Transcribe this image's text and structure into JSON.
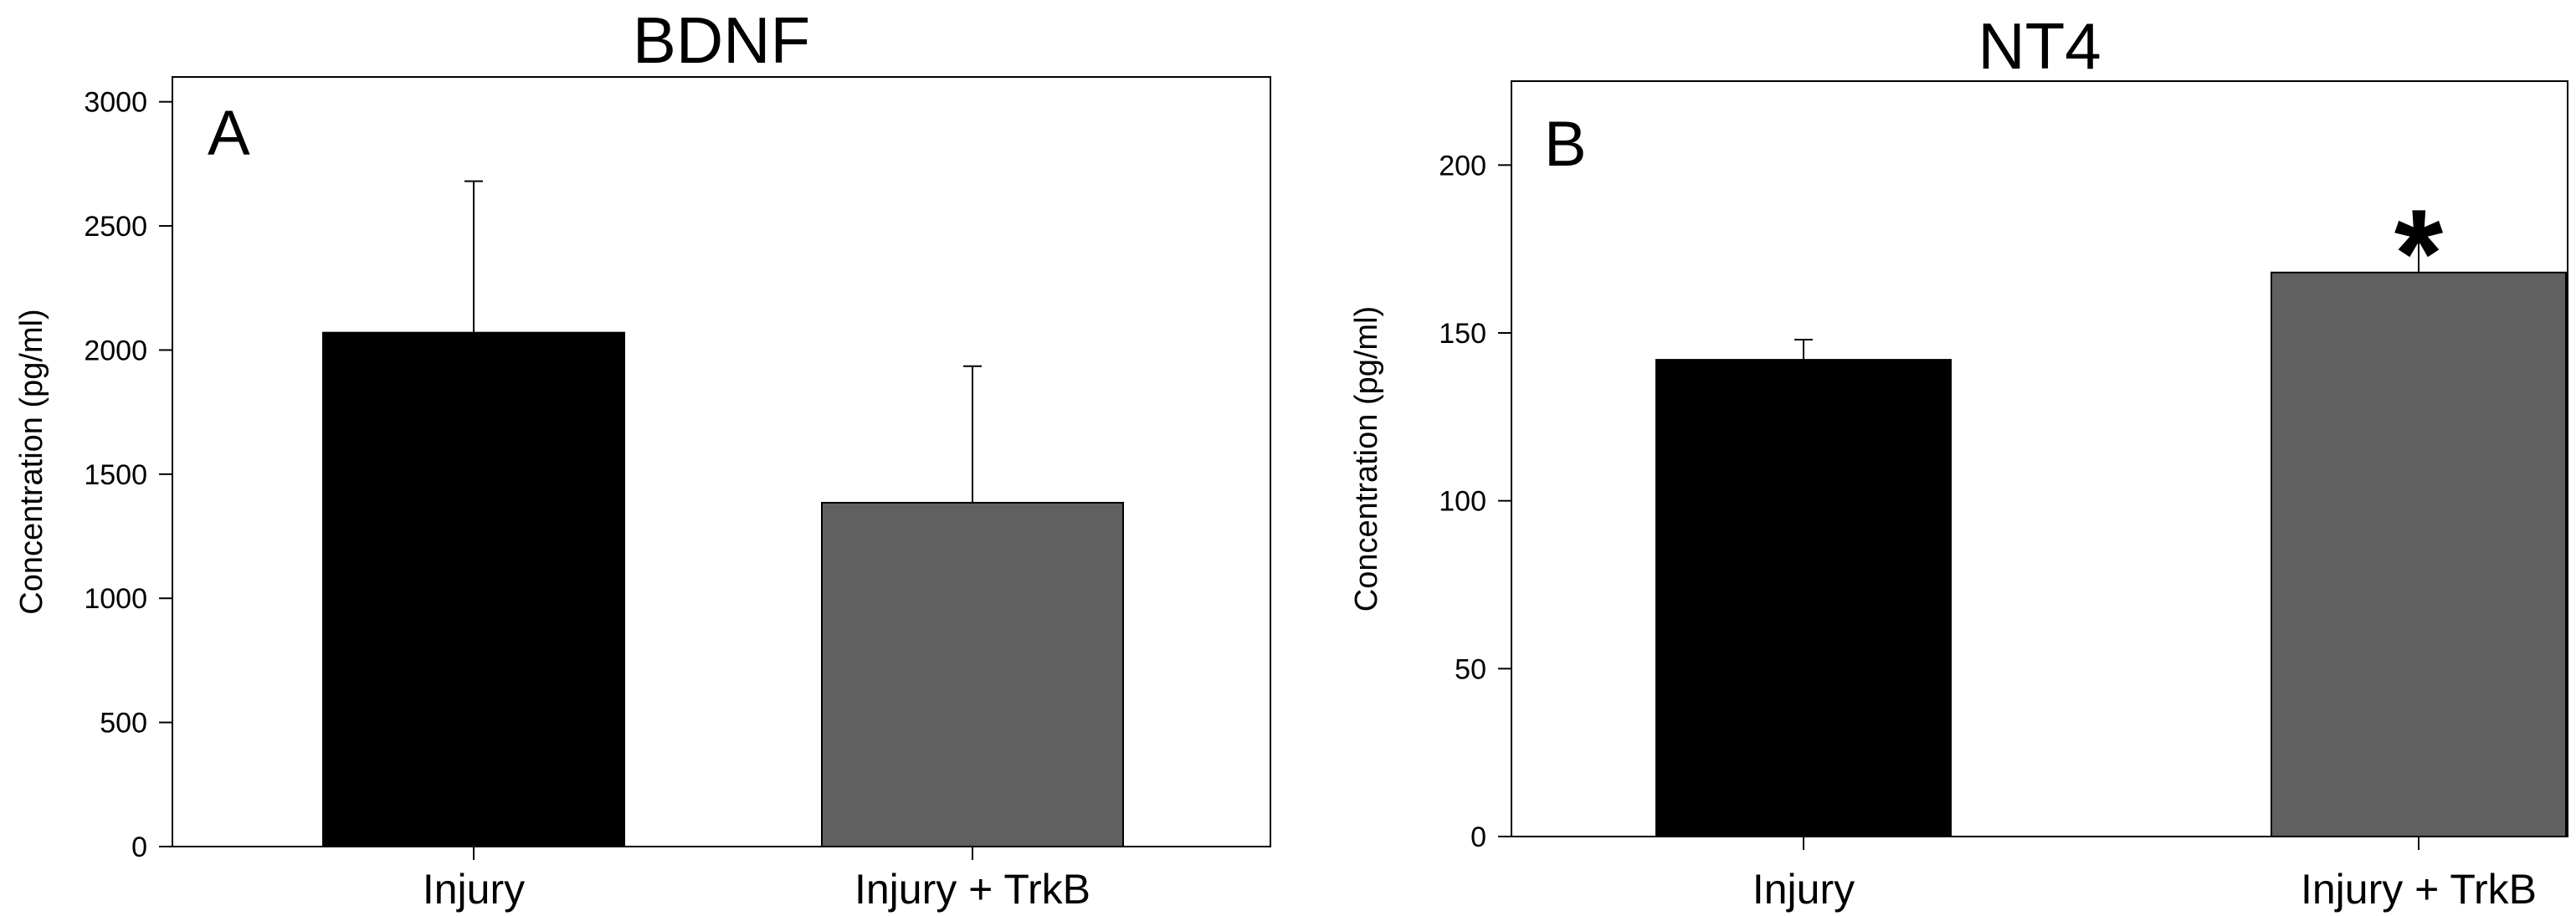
{
  "chart_data": [
    {
      "type": "bar",
      "title": "BDNF",
      "panel_label": "A",
      "categories": [
        "Injury",
        "Injury + TrkB"
      ],
      "values": [
        2070,
        1385
      ],
      "error_upper": [
        2680,
        1935
      ],
      "bar_colors": [
        "#000000",
        "#606060"
      ],
      "ylabel": "Concentration (pg/ml)",
      "xlabel": "",
      "ylim": [
        0,
        3100
      ],
      "yticks": [
        0,
        500,
        1000,
        1500,
        2000,
        2500,
        3000
      ],
      "annotations": [],
      "grid": false
    },
    {
      "type": "bar",
      "title": "NT4",
      "panel_label": "B",
      "categories": [
        "Injury",
        "Injury + TrkB"
      ],
      "values": [
        142,
        168
      ],
      "error_upper": [
        148,
        177
      ],
      "bar_colors": [
        "#000000",
        "#606060"
      ],
      "ylabel": "Concentration (pg/ml)",
      "xlabel": "",
      "ylim": [
        0,
        225
      ],
      "yticks": [
        0,
        50,
        100,
        150,
        200
      ],
      "annotations": [
        {
          "category": "Injury + TrkB",
          "text": "*"
        }
      ],
      "grid": false
    }
  ]
}
